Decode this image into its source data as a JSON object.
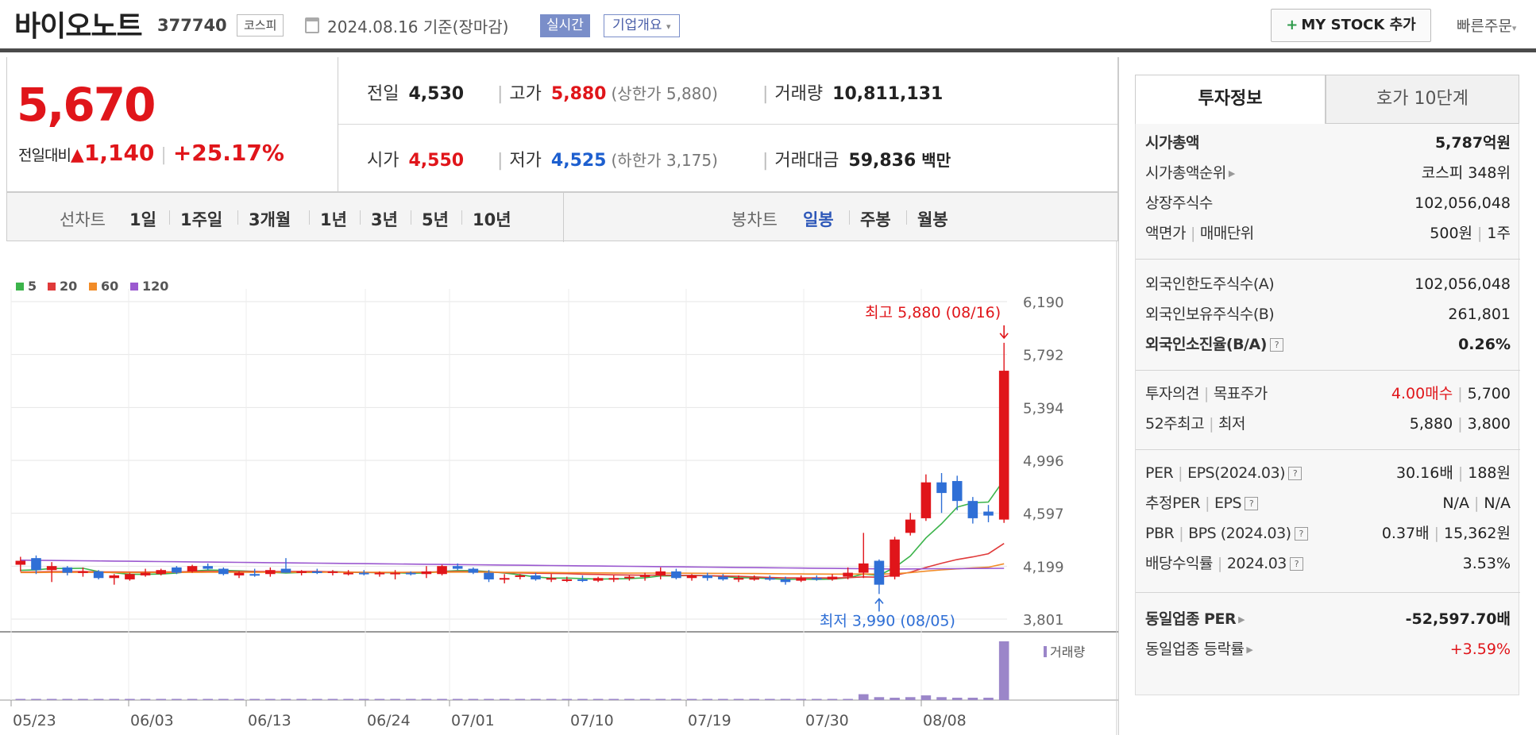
{
  "header": {
    "stock_name": "바이오노트",
    "stock_code": "377740",
    "market": "코스피",
    "date": "2024.08.16 기준(장마감)",
    "realtime": "실시간",
    "company_overview": "기업개요",
    "my_stock_label": "MY STOCK 추가",
    "quick_order": "빠른주문"
  },
  "price": {
    "current": "5,670",
    "compare_label": "전일대비",
    "change": "1,140",
    "change_pct": "+25.17%"
  },
  "info": {
    "prev_label": "전일",
    "prev": "4,530",
    "high_label": "고가",
    "high": "5,880",
    "upper_limit": "(상한가 5,880)",
    "volume_label": "거래량",
    "volume": "10,811,131",
    "open_label": "시가",
    "open": "4,550",
    "low_label": "저가",
    "low": "4,525",
    "lower_limit": "(하한가 3,175)",
    "amount_label": "거래대금",
    "amount": "59,836",
    "amount_unit": "백만"
  },
  "chart_tabs": {
    "line_label": "선차트",
    "periods": [
      "1일",
      "1주일",
      "3개월",
      "1년",
      "3년",
      "5년",
      "10년"
    ],
    "candle_label": "봉차트",
    "candles": [
      "일봉",
      "주봉",
      "월봉"
    ],
    "selected_candle": "일봉"
  },
  "chart_data": {
    "type": "candlestick",
    "ma_legend": [
      {
        "name": "5",
        "color": "#3cb44b"
      },
      {
        "name": "20",
        "color": "#e03a3a"
      },
      {
        "name": "60",
        "color": "#f28c28"
      },
      {
        "name": "120",
        "color": "#9b59d0"
      }
    ],
    "y_ticks": [
      "6,190",
      "5,792",
      "5,394",
      "4,996",
      "4,597",
      "4,199",
      "3,801"
    ],
    "ylim": [
      3801,
      6190
    ],
    "x_ticks": [
      "05/23",
      "06/03",
      "06/13",
      "06/24",
      "07/01",
      "07/10",
      "07/19",
      "07/30",
      "08/08"
    ],
    "high_annotation": "최고 5,880 (08/16)",
    "low_annotation": "최저 3,990 (08/05)",
    "volume_label": "거래량",
    "candles": [
      {
        "o": 4210,
        "h": 4270,
        "l": 4160,
        "c": 4240
      },
      {
        "o": 4260,
        "h": 4280,
        "l": 4140,
        "c": 4170
      },
      {
        "o": 4170,
        "h": 4230,
        "l": 4080,
        "c": 4200
      },
      {
        "o": 4190,
        "h": 4200,
        "l": 4130,
        "c": 4150
      },
      {
        "o": 4150,
        "h": 4190,
        "l": 4120,
        "c": 4160
      },
      {
        "o": 4160,
        "h": 4170,
        "l": 4100,
        "c": 4110
      },
      {
        "o": 4110,
        "h": 4140,
        "l": 4060,
        "c": 4130
      },
      {
        "o": 4100,
        "h": 4150,
        "l": 4090,
        "c": 4140
      },
      {
        "o": 4130,
        "h": 4180,
        "l": 4120,
        "c": 4150
      },
      {
        "o": 4140,
        "h": 4180,
        "l": 4130,
        "c": 4170
      },
      {
        "o": 4190,
        "h": 4200,
        "l": 4140,
        "c": 4150
      },
      {
        "o": 4160,
        "h": 4210,
        "l": 4150,
        "c": 4200
      },
      {
        "o": 4200,
        "h": 4220,
        "l": 4170,
        "c": 4180
      },
      {
        "o": 4180,
        "h": 4190,
        "l": 4130,
        "c": 4140
      },
      {
        "o": 4130,
        "h": 4160,
        "l": 4110,
        "c": 4150
      },
      {
        "o": 4140,
        "h": 4180,
        "l": 4120,
        "c": 4130
      },
      {
        "o": 4140,
        "h": 4190,
        "l": 4120,
        "c": 4170
      },
      {
        "o": 4180,
        "h": 4260,
        "l": 4150,
        "c": 4150
      },
      {
        "o": 4150,
        "h": 4170,
        "l": 4130,
        "c": 4160
      },
      {
        "o": 4160,
        "h": 4180,
        "l": 4140,
        "c": 4150
      },
      {
        "o": 4150,
        "h": 4170,
        "l": 4130,
        "c": 4160
      },
      {
        "o": 4150,
        "h": 4170,
        "l": 4130,
        "c": 4150
      },
      {
        "o": 4150,
        "h": 4170,
        "l": 4130,
        "c": 4140
      },
      {
        "o": 4140,
        "h": 4160,
        "l": 4120,
        "c": 4150
      },
      {
        "o": 4140,
        "h": 4170,
        "l": 4100,
        "c": 4150
      },
      {
        "o": 4150,
        "h": 4160,
        "l": 4130,
        "c": 4140
      },
      {
        "o": 4140,
        "h": 4200,
        "l": 4110,
        "c": 4160
      },
      {
        "o": 4140,
        "h": 4210,
        "l": 4130,
        "c": 4200
      },
      {
        "o": 4200,
        "h": 4220,
        "l": 4170,
        "c": 4180
      },
      {
        "o": 4180,
        "h": 4190,
        "l": 4140,
        "c": 4150
      },
      {
        "o": 4150,
        "h": 4170,
        "l": 4080,
        "c": 4100
      },
      {
        "o": 4100,
        "h": 4140,
        "l": 4070,
        "c": 4110
      },
      {
        "o": 4120,
        "h": 4140,
        "l": 4100,
        "c": 4130
      },
      {
        "o": 4130,
        "h": 4150,
        "l": 4090,
        "c": 4100
      },
      {
        "o": 4100,
        "h": 4140,
        "l": 4080,
        "c": 4110
      },
      {
        "o": 4100,
        "h": 4120,
        "l": 4080,
        "c": 4100
      },
      {
        "o": 4100,
        "h": 4130,
        "l": 4080,
        "c": 4090
      },
      {
        "o": 4090,
        "h": 4120,
        "l": 4080,
        "c": 4110
      },
      {
        "o": 4100,
        "h": 4130,
        "l": 4080,
        "c": 4110
      },
      {
        "o": 4110,
        "h": 4130,
        "l": 4090,
        "c": 4120
      },
      {
        "o": 4120,
        "h": 4150,
        "l": 4090,
        "c": 4130
      },
      {
        "o": 4130,
        "h": 4190,
        "l": 4100,
        "c": 4160
      },
      {
        "o": 4160,
        "h": 4180,
        "l": 4100,
        "c": 4110
      },
      {
        "o": 4110,
        "h": 4140,
        "l": 4090,
        "c": 4130
      },
      {
        "o": 4130,
        "h": 4150,
        "l": 4090,
        "c": 4110
      },
      {
        "o": 4120,
        "h": 4140,
        "l": 4090,
        "c": 4100
      },
      {
        "o": 4100,
        "h": 4130,
        "l": 4080,
        "c": 4110
      },
      {
        "o": 4100,
        "h": 4130,
        "l": 4090,
        "c": 4110
      },
      {
        "o": 4110,
        "h": 4130,
        "l": 4090,
        "c": 4100
      },
      {
        "o": 4100,
        "h": 4120,
        "l": 4060,
        "c": 4080
      },
      {
        "o": 4090,
        "h": 4130,
        "l": 4080,
        "c": 4110
      },
      {
        "o": 4110,
        "h": 4130,
        "l": 4090,
        "c": 4100
      },
      {
        "o": 4100,
        "h": 4140,
        "l": 4090,
        "c": 4120
      },
      {
        "o": 4120,
        "h": 4190,
        "l": 4100,
        "c": 4150
      },
      {
        "o": 4150,
        "h": 4450,
        "l": 4110,
        "c": 4220
      },
      {
        "o": 4240,
        "h": 4250,
        "l": 3990,
        "c": 4060
      },
      {
        "o": 4120,
        "h": 4420,
        "l": 4100,
        "c": 4400
      },
      {
        "o": 4450,
        "h": 4600,
        "l": 4430,
        "c": 4550
      },
      {
        "o": 4560,
        "h": 4890,
        "l": 4540,
        "c": 4830
      },
      {
        "o": 4830,
        "h": 4900,
        "l": 4600,
        "c": 4750
      },
      {
        "o": 4840,
        "h": 4880,
        "l": 4620,
        "c": 4690
      },
      {
        "o": 4690,
        "h": 4720,
        "l": 4520,
        "c": 4560
      },
      {
        "o": 4610,
        "h": 4660,
        "l": 4530,
        "c": 4580
      },
      {
        "o": 4550,
        "h": 5880,
        "l": 4525,
        "c": 5670
      }
    ],
    "volumes": [
      0.02,
      0.02,
      0.02,
      0.02,
      0.02,
      0.02,
      0.02,
      0.02,
      0.02,
      0.02,
      0.02,
      0.02,
      0.02,
      0.02,
      0.02,
      0.02,
      0.02,
      0.02,
      0.02,
      0.02,
      0.02,
      0.02,
      0.02,
      0.02,
      0.02,
      0.02,
      0.02,
      0.02,
      0.02,
      0.02,
      0.02,
      0.02,
      0.02,
      0.02,
      0.02,
      0.02,
      0.02,
      0.02,
      0.02,
      0.02,
      0.02,
      0.02,
      0.02,
      0.02,
      0.02,
      0.02,
      0.02,
      0.02,
      0.02,
      0.02,
      0.02,
      0.02,
      0.02,
      0.02,
      0.1,
      0.05,
      0.04,
      0.05,
      0.08,
      0.05,
      0.04,
      0.04,
      0.04,
      1.0
    ]
  },
  "panel": {
    "tab_invest": "투자정보",
    "tab_order": "호가 10단계",
    "mktcap_label": "시가총액",
    "mktcap": "5,787억원",
    "mktcap_rank_label": "시가총액순위",
    "mktcap_rank": "코스피 348위",
    "shares_label": "상장주식수",
    "shares": "102,056,048",
    "face_label": "액면가",
    "unit_label": "매매단위",
    "face": "500원",
    "unit": "1주",
    "foreign_limit_label": "외국인한도주식수(A)",
    "foreign_limit": "102,056,048",
    "foreign_hold_label": "외국인보유주식수(B)",
    "foreign_hold": "261,801",
    "foreign_ratio_label": "외국인소진율(B/A)",
    "foreign_ratio": "0.26%",
    "opinion_label": "투자의견",
    "target_label": "목표주가",
    "opinion": "4.00매수",
    "target": "5,700",
    "w52_label": "52주최고",
    "w52_low_label": "최저",
    "w52_high": "5,880",
    "w52_low": "3,800",
    "per_label": "PER",
    "eps_label": "EPS(2024.03)",
    "per": "30.16배",
    "eps": "188원",
    "eper_label": "추정PER",
    "eeps_label": "EPS",
    "eper": "N/A",
    "eeps": "N/A",
    "pbr_label": "PBR",
    "bps_label": "BPS (2024.03)",
    "pbr": "0.37배",
    "bps": "15,362원",
    "div_label": "배당수익률",
    "div_date": "2024.03",
    "div": "3.53%",
    "ind_per_label": "동일업종 PER",
    "ind_per": "-52,597.70배",
    "ind_chg_label": "동일업종 등락률",
    "ind_chg": "+3.59%"
  }
}
